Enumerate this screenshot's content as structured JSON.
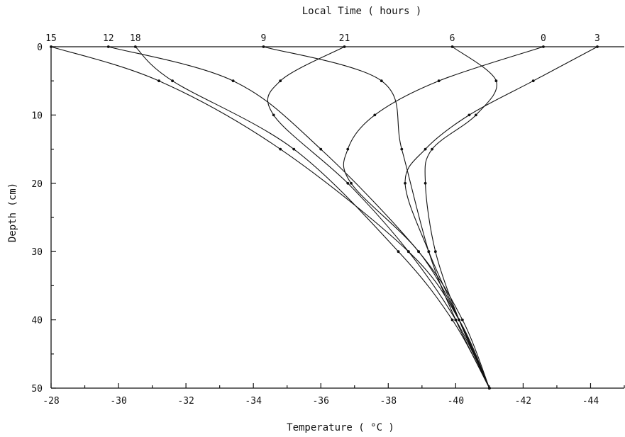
{
  "chart_data": {
    "type": "line",
    "title": "",
    "top_axis_label": "Local Time ( hours )",
    "xlabel": "Temperature ( °C )",
    "ylabel": "Depth (cm)",
    "x_ticks": [
      "-28",
      "-30",
      "-32",
      "-34",
      "-36",
      "-38",
      "-40",
      "-42",
      "-44"
    ],
    "y_ticks": [
      "0",
      "10",
      "20",
      "30",
      "40",
      "50"
    ],
    "xlim": [
      -28,
      -45
    ],
    "ylim": [
      0,
      50
    ],
    "y_inverted": true,
    "grid": false,
    "series": [
      {
        "name": "15",
        "points": [
          [
            -28.0,
            0
          ],
          [
            -31.2,
            5
          ],
          [
            -34.8,
            15
          ],
          [
            -38.6,
            30
          ],
          [
            -40.1,
            40
          ],
          [
            -41.0,
            50
          ]
        ]
      },
      {
        "name": "12",
        "points": [
          [
            -29.7,
            0
          ],
          [
            -33.4,
            5
          ],
          [
            -36.0,
            15
          ],
          [
            -38.9,
            30
          ],
          [
            -40.2,
            40
          ],
          [
            -41.0,
            50
          ]
        ]
      },
      {
        "name": "18",
        "points": [
          [
            -30.5,
            0
          ],
          [
            -31.6,
            5
          ],
          [
            -35.2,
            15
          ],
          [
            -38.3,
            30
          ],
          [
            -39.9,
            40
          ],
          [
            -41.0,
            50
          ]
        ]
      },
      {
        "name": "9",
        "points": [
          [
            -34.3,
            0
          ],
          [
            -37.8,
            5
          ],
          [
            -38.4,
            15
          ],
          [
            -39.2,
            30
          ],
          [
            -40.0,
            40
          ],
          [
            -41.0,
            50
          ]
        ]
      },
      {
        "name": "21",
        "points": [
          [
            -36.7,
            0
          ],
          [
            -34.8,
            5
          ],
          [
            -34.6,
            10
          ],
          [
            -36.8,
            20
          ],
          [
            -38.6,
            30
          ],
          [
            -40.0,
            40
          ],
          [
            -41.0,
            50
          ]
        ]
      },
      {
        "name": "6",
        "points": [
          [
            -39.9,
            0
          ],
          [
            -41.2,
            5
          ],
          [
            -40.6,
            10
          ],
          [
            -39.3,
            15
          ],
          [
            -39.1,
            20
          ],
          [
            -39.4,
            30
          ],
          [
            -40.1,
            40
          ],
          [
            -41.0,
            50
          ]
        ]
      },
      {
        "name": "0",
        "points": [
          [
            -42.6,
            0
          ],
          [
            -39.5,
            5
          ],
          [
            -37.6,
            10
          ],
          [
            -36.8,
            15
          ],
          [
            -36.9,
            20
          ],
          [
            -38.9,
            30
          ],
          [
            -40.1,
            40
          ],
          [
            -41.0,
            50
          ]
        ]
      },
      {
        "name": "3",
        "points": [
          [
            -44.2,
            0
          ],
          [
            -42.3,
            5
          ],
          [
            -40.4,
            10
          ],
          [
            -39.1,
            15
          ],
          [
            -38.5,
            20
          ],
          [
            -39.2,
            30
          ],
          [
            -40.1,
            40
          ],
          [
            -41.0,
            50
          ]
        ]
      }
    ]
  }
}
